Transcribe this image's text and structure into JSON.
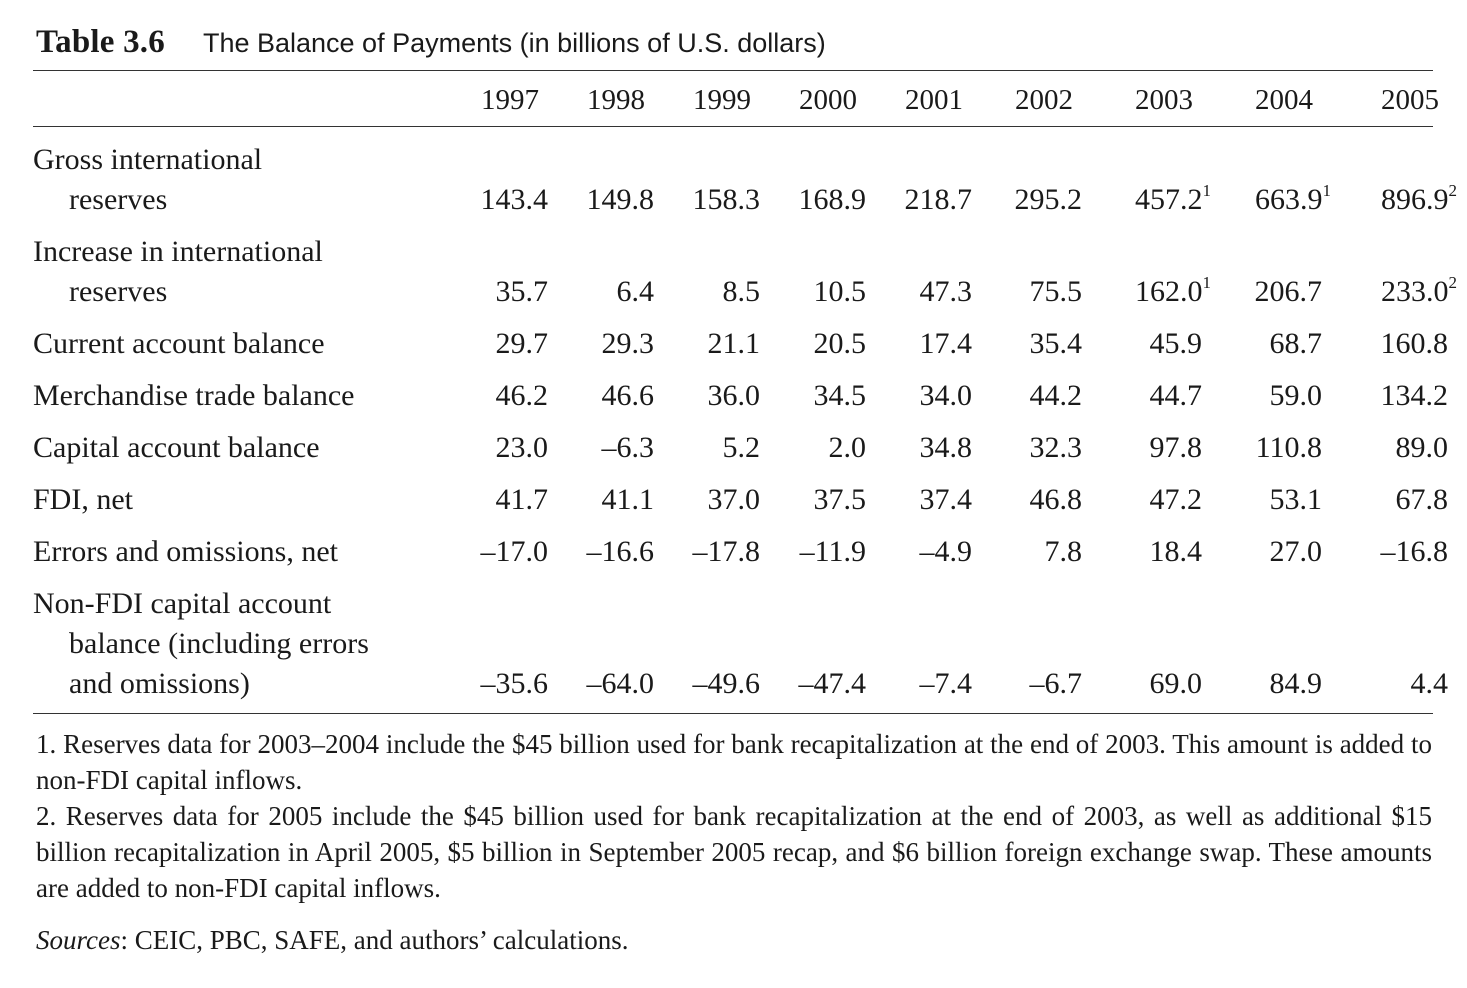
{
  "title": {
    "label": "Table 3.6",
    "text": "The Balance of Payments (in billions of U.S. dollars)"
  },
  "years": [
    "1997",
    "1998",
    "1999",
    "2000",
    "2001",
    "2002",
    "2003",
    "2004",
    "2005"
  ],
  "rows": [
    {
      "label_lines": [
        "Gross international",
        "reserves"
      ],
      "values": [
        {
          "v": "143.4",
          "sup": ""
        },
        {
          "v": "149.8",
          "sup": ""
        },
        {
          "v": "158.3",
          "sup": ""
        },
        {
          "v": "168.9",
          "sup": ""
        },
        {
          "v": "218.7",
          "sup": ""
        },
        {
          "v": "295.2",
          "sup": ""
        },
        {
          "v": "457.2",
          "sup": "1"
        },
        {
          "v": "663.9",
          "sup": "1"
        },
        {
          "v": "896.9",
          "sup": "2"
        }
      ]
    },
    {
      "label_lines": [
        "Increase in international",
        "reserves"
      ],
      "values": [
        {
          "v": "35.7",
          "sup": ""
        },
        {
          "v": "6.4",
          "sup": ""
        },
        {
          "v": "8.5",
          "sup": ""
        },
        {
          "v": "10.5",
          "sup": ""
        },
        {
          "v": "47.3",
          "sup": ""
        },
        {
          "v": "75.5",
          "sup": ""
        },
        {
          "v": "162.0",
          "sup": "1"
        },
        {
          "v": "206.7",
          "sup": ""
        },
        {
          "v": "233.0",
          "sup": "2"
        }
      ]
    },
    {
      "label_lines": [
        "Current account balance"
      ],
      "values": [
        {
          "v": "29.7",
          "sup": ""
        },
        {
          "v": "29.3",
          "sup": ""
        },
        {
          "v": "21.1",
          "sup": ""
        },
        {
          "v": "20.5",
          "sup": ""
        },
        {
          "v": "17.4",
          "sup": ""
        },
        {
          "v": "35.4",
          "sup": ""
        },
        {
          "v": "45.9",
          "sup": ""
        },
        {
          "v": "68.7",
          "sup": ""
        },
        {
          "v": "160.8",
          "sup": ""
        }
      ]
    },
    {
      "label_lines": [
        "Merchandise trade balance"
      ],
      "values": [
        {
          "v": "46.2",
          "sup": ""
        },
        {
          "v": "46.6",
          "sup": ""
        },
        {
          "v": "36.0",
          "sup": ""
        },
        {
          "v": "34.5",
          "sup": ""
        },
        {
          "v": "34.0",
          "sup": ""
        },
        {
          "v": "44.2",
          "sup": ""
        },
        {
          "v": "44.7",
          "sup": ""
        },
        {
          "v": "59.0",
          "sup": ""
        },
        {
          "v": "134.2",
          "sup": ""
        }
      ]
    },
    {
      "label_lines": [
        "Capital account balance"
      ],
      "values": [
        {
          "v": "23.0",
          "sup": ""
        },
        {
          "v": "–6.3",
          "sup": ""
        },
        {
          "v": "5.2",
          "sup": ""
        },
        {
          "v": "2.0",
          "sup": ""
        },
        {
          "v": "34.8",
          "sup": ""
        },
        {
          "v": "32.3",
          "sup": ""
        },
        {
          "v": "97.8",
          "sup": ""
        },
        {
          "v": "110.8",
          "sup": ""
        },
        {
          "v": "89.0",
          "sup": ""
        }
      ]
    },
    {
      "label_lines": [
        "FDI, net"
      ],
      "values": [
        {
          "v": "41.7",
          "sup": ""
        },
        {
          "v": "41.1",
          "sup": ""
        },
        {
          "v": "37.0",
          "sup": ""
        },
        {
          "v": "37.5",
          "sup": ""
        },
        {
          "v": "37.4",
          "sup": ""
        },
        {
          "v": "46.8",
          "sup": ""
        },
        {
          "v": "47.2",
          "sup": ""
        },
        {
          "v": "53.1",
          "sup": ""
        },
        {
          "v": "67.8",
          "sup": ""
        }
      ]
    },
    {
      "label_lines": [
        "Errors and omissions, net"
      ],
      "values": [
        {
          "v": "–17.0",
          "sup": ""
        },
        {
          "v": "–16.6",
          "sup": ""
        },
        {
          "v": "–17.8",
          "sup": ""
        },
        {
          "v": "–11.9",
          "sup": ""
        },
        {
          "v": "–4.9",
          "sup": ""
        },
        {
          "v": "7.8",
          "sup": ""
        },
        {
          "v": "18.4",
          "sup": ""
        },
        {
          "v": "27.0",
          "sup": ""
        },
        {
          "v": "–16.8",
          "sup": ""
        }
      ]
    },
    {
      "label_lines": [
        "Non-FDI capital account",
        "balance (including errors",
        "and omissions)"
      ],
      "values": [
        {
          "v": "–35.6",
          "sup": ""
        },
        {
          "v": "–64.0",
          "sup": ""
        },
        {
          "v": "–49.6",
          "sup": ""
        },
        {
          "v": "–47.4",
          "sup": ""
        },
        {
          "v": "–7.4",
          "sup": ""
        },
        {
          "v": "–6.7",
          "sup": ""
        },
        {
          "v": "69.0",
          "sup": ""
        },
        {
          "v": "84.9",
          "sup": ""
        },
        {
          "v": "4.4",
          "sup": ""
        }
      ]
    }
  ],
  "notes": [
    "1. Reserves data for 2003–2004 include the $45 billion used for bank recapitalization at the end of 2003. This amount is added to non-FDI capital inflows.",
    "2. Reserves data for 2005 include the $45 billion used for bank recapitalization at the end of 2003, as well as additional $15 billion recapitalization in April 2005, $5 billion in September 2005 recap, and $6 billion for­eign exchange swap. These amounts are added to non-FDI capital inflows."
  ],
  "sources": {
    "label": "Sources",
    "text": ": CEIC, PBC, SAFE, and authors’ calculations."
  }
}
